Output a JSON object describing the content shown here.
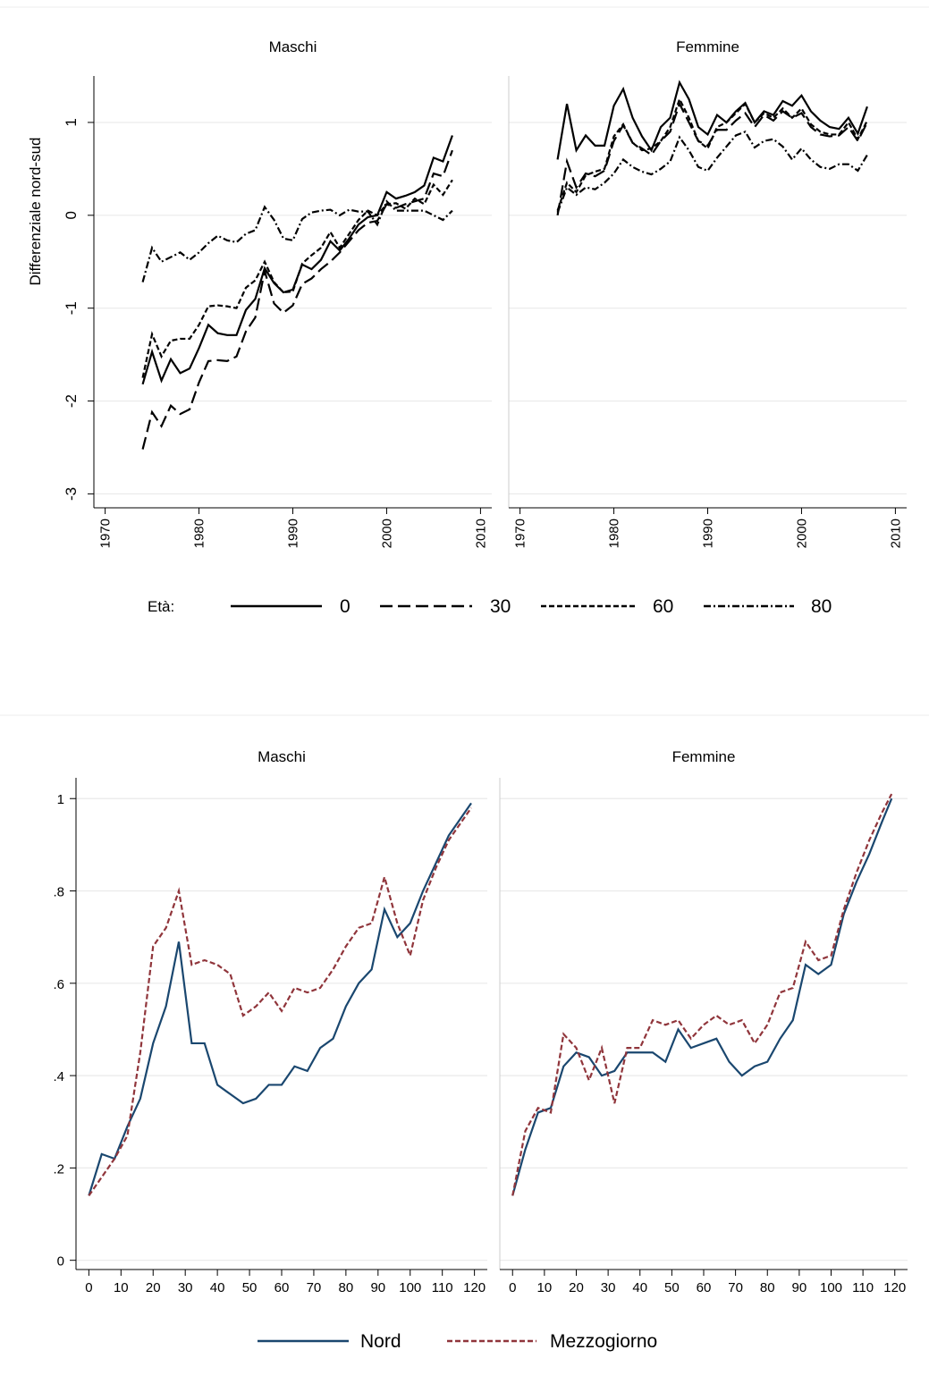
{
  "chart_data": [
    {
      "type": "line",
      "ylabel": "Differenziale nord-sud",
      "legend_title": "Età:",
      "xlim": [
        1968.8,
        2011.2
      ],
      "xticks": [
        1970,
        1980,
        1990,
        2000,
        2010
      ],
      "ylim": [
        -3.15,
        1.5
      ],
      "yticks": [
        -3,
        -2,
        -1,
        0,
        1
      ],
      "grid": true,
      "legend": [
        {
          "name": "0",
          "color": "#000000",
          "dash": "solid"
        },
        {
          "name": "30",
          "color": "#000000",
          "dash": "long-dash"
        },
        {
          "name": "60",
          "color": "#000000",
          "dash": "short-dash"
        },
        {
          "name": "80",
          "color": "#000000",
          "dash": "dash-dot"
        }
      ],
      "x": [
        1974,
        1975,
        1976,
        1977,
        1978,
        1979,
        1980,
        1981,
        1982,
        1983,
        1984,
        1985,
        1986,
        1987,
        1988,
        1989,
        1990,
        1991,
        1992,
        1993,
        1994,
        1995,
        1996,
        1997,
        1998,
        1999,
        2000,
        2001,
        2002,
        2003,
        2004,
        2005,
        2006,
        2007
      ],
      "panels": [
        {
          "title": "Maschi",
          "series": [
            {
              "values": [
                -1.82,
                -1.47,
                -1.78,
                -1.55,
                -1.7,
                -1.65,
                -1.43,
                -1.18,
                -1.27,
                -1.29,
                -1.29,
                -1.02,
                -0.9,
                -0.57,
                -0.73,
                -0.83,
                -0.8,
                -0.53,
                -0.58,
                -0.48,
                -0.28,
                -0.38,
                -0.25,
                -0.1,
                -0.02,
                0.0,
                0.25,
                0.18,
                0.21,
                0.25,
                0.32,
                0.62,
                0.58,
                0.86
              ]
            },
            {
              "values": [
                -2.52,
                -2.12,
                -2.27,
                -2.05,
                -2.14,
                -2.09,
                -1.8,
                -1.57,
                -1.56,
                -1.57,
                -1.52,
                -1.25,
                -1.1,
                -0.6,
                -0.95,
                -1.05,
                -0.97,
                -0.74,
                -0.68,
                -0.58,
                -0.5,
                -0.4,
                -0.28,
                -0.16,
                -0.08,
                -0.06,
                0.12,
                0.08,
                0.12,
                0.15,
                0.18,
                0.45,
                0.42,
                0.7
              ]
            },
            {
              "values": [
                -1.75,
                -1.28,
                -1.52,
                -1.35,
                -1.33,
                -1.33,
                -1.18,
                -0.98,
                -0.97,
                -0.98,
                -1.0,
                -0.78,
                -0.7,
                -0.5,
                -0.72,
                -0.83,
                -0.82,
                -0.52,
                -0.43,
                -0.35,
                -0.18,
                -0.35,
                -0.2,
                -0.05,
                0.05,
                0.0,
                0.12,
                0.13,
                0.07,
                0.18,
                0.12,
                0.33,
                0.22,
                0.38
              ]
            },
            {
              "values": [
                -0.72,
                -0.35,
                -0.5,
                -0.45,
                -0.4,
                -0.48,
                -0.4,
                -0.3,
                -0.22,
                -0.27,
                -0.29,
                -0.2,
                -0.16,
                0.09,
                -0.05,
                -0.25,
                -0.27,
                -0.04,
                0.03,
                0.05,
                0.06,
                0.0,
                0.06,
                0.04,
                0.04,
                -0.1,
                0.15,
                0.05,
                0.05,
                0.05,
                0.05,
                0.0,
                -0.05,
                0.05
              ]
            }
          ]
        },
        {
          "title": "Femmine",
          "series": [
            {
              "values": [
                0.6,
                1.2,
                0.7,
                0.86,
                0.75,
                0.75,
                1.18,
                1.36,
                1.05,
                0.85,
                0.7,
                0.95,
                1.05,
                1.43,
                1.25,
                0.95,
                0.87,
                1.08,
                1.0,
                1.12,
                1.21,
                1.0,
                1.12,
                1.08,
                1.23,
                1.18,
                1.29,
                1.12,
                1.02,
                0.95,
                0.93,
                1.05,
                0.88,
                1.17
              ]
            },
            {
              "values": [
                0.0,
                0.58,
                0.3,
                0.45,
                0.42,
                0.48,
                0.8,
                0.97,
                0.78,
                0.72,
                0.65,
                0.8,
                0.9,
                1.2,
                1.0,
                0.8,
                0.75,
                0.92,
                0.92,
                1.02,
                1.1,
                0.95,
                1.08,
                1.02,
                1.12,
                1.05,
                1.1,
                0.95,
                0.87,
                0.85,
                0.86,
                0.95,
                0.8,
                1.0
              ]
            },
            {
              "values": [
                0.05,
                0.35,
                0.25,
                0.43,
                0.47,
                0.5,
                0.85,
                0.98,
                0.78,
                0.7,
                0.72,
                0.8,
                0.95,
                1.25,
                1.05,
                0.8,
                0.72,
                0.95,
                1.0,
                1.1,
                1.2,
                1.0,
                1.1,
                1.05,
                1.15,
                1.05,
                1.15,
                0.98,
                0.9,
                0.87,
                0.87,
                1.0,
                0.82,
                1.02
              ]
            },
            {
              "values": [
                0.03,
                0.3,
                0.22,
                0.3,
                0.28,
                0.35,
                0.45,
                0.6,
                0.52,
                0.47,
                0.44,
                0.5,
                0.58,
                0.84,
                0.7,
                0.52,
                0.48,
                0.62,
                0.74,
                0.86,
                0.9,
                0.73,
                0.8,
                0.82,
                0.74,
                0.6,
                0.72,
                0.6,
                0.52,
                0.5,
                0.55,
                0.55,
                0.48,
                0.65
              ]
            }
          ]
        }
      ]
    },
    {
      "type": "line",
      "xlim": [
        -4,
        124
      ],
      "xticks": [
        0,
        10,
        20,
        30,
        40,
        50,
        60,
        70,
        80,
        90,
        100,
        110,
        120
      ],
      "ylim": [
        -0.02,
        1.045
      ],
      "yticks": [
        0,
        {
          "value": 0.2,
          "label": ".2"
        },
        {
          "value": 0.4,
          "label": ".4"
        },
        {
          "value": 0.6,
          "label": ".6"
        },
        {
          "value": 0.8,
          "label": ".8"
        },
        1
      ],
      "grid": true,
      "legend": [
        {
          "name": "Nord",
          "color": "#1a476f",
          "dash": "solid"
        },
        {
          "name": "Mezzogiorno",
          "color": "#90353b",
          "dash": "short-dash"
        }
      ],
      "x": [
        0,
        4,
        8,
        12,
        16,
        20,
        24,
        28,
        32,
        36,
        40,
        44,
        48,
        52,
        56,
        60,
        64,
        68,
        72,
        76,
        80,
        84,
        88,
        92,
        96,
        100,
        104,
        108,
        112,
        116,
        119
      ],
      "panels": [
        {
          "title": "Maschi",
          "series": [
            {
              "values": [
                0.14,
                0.23,
                0.22,
                0.29,
                0.35,
                0.47,
                0.55,
                0.69,
                0.47,
                0.47,
                0.38,
                0.36,
                0.34,
                0.35,
                0.38,
                0.38,
                0.42,
                0.41,
                0.46,
                0.48,
                0.55,
                0.6,
                0.63,
                0.76,
                0.7,
                0.73,
                0.8,
                0.86,
                0.92,
                0.96,
                0.99
              ]
            },
            {
              "values": [
                0.14,
                0.18,
                0.22,
                0.27,
                0.45,
                0.68,
                0.72,
                0.8,
                0.64,
                0.65,
                0.64,
                0.62,
                0.53,
                0.55,
                0.58,
                0.54,
                0.59,
                0.58,
                0.59,
                0.63,
                0.68,
                0.72,
                0.73,
                0.83,
                0.73,
                0.66,
                0.78,
                0.85,
                0.91,
                0.95,
                0.98
              ]
            }
          ]
        },
        {
          "title": "Femmine",
          "series": [
            {
              "values": [
                0.14,
                0.24,
                0.32,
                0.33,
                0.42,
                0.45,
                0.44,
                0.4,
                0.41,
                0.45,
                0.45,
                0.45,
                0.43,
                0.5,
                0.46,
                0.47,
                0.48,
                0.43,
                0.4,
                0.42,
                0.43,
                0.48,
                0.52,
                0.64,
                0.62,
                0.64,
                0.75,
                0.82,
                0.88,
                0.95,
                1.0
              ]
            },
            {
              "values": [
                0.14,
                0.28,
                0.33,
                0.32,
                0.49,
                0.46,
                0.39,
                0.46,
                0.34,
                0.46,
                0.46,
                0.52,
                0.51,
                0.52,
                0.48,
                0.51,
                0.53,
                0.51,
                0.52,
                0.47,
                0.51,
                0.58,
                0.59,
                0.69,
                0.65,
                0.66,
                0.76,
                0.84,
                0.91,
                0.97,
                1.01
              ]
            }
          ]
        }
      ]
    }
  ]
}
